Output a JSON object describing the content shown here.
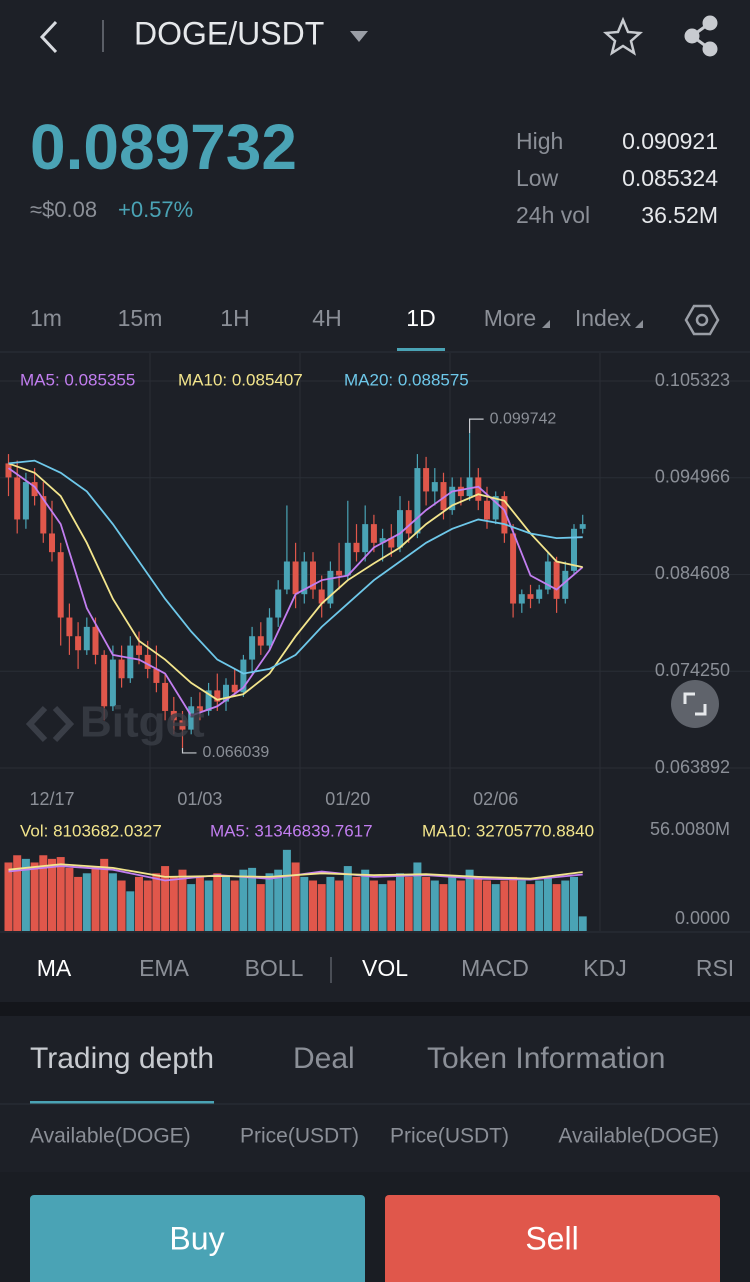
{
  "header": {
    "pair": "DOGE/USDT"
  },
  "ticker": {
    "price": "0.089732",
    "usd": "≈$0.08",
    "change": "+0.57%",
    "stats": [
      {
        "label": "High",
        "value": "0.090921"
      },
      {
        "label": "Low",
        "value": "0.085324"
      },
      {
        "label": "24h vol",
        "value": "36.52M"
      }
    ]
  },
  "timeframes": {
    "items": [
      "1m",
      "15m",
      "1H",
      "4H",
      "1D",
      "More",
      "Index"
    ],
    "active": 4
  },
  "chart_data": {
    "type": "candlestick",
    "legend": [
      "MA5: 0.085355",
      "MA10: 0.085407",
      "MA20: 0.088575"
    ],
    "watermark": "Bitget",
    "up_color": "#4aa3b5",
    "down_color": "#e0574b",
    "ylim": [
      0.063892,
      0.105323
    ],
    "yticks": [
      0.063892,
      {
        "value": 0.07425,
        "label": "0.074250"
      },
      0.084608,
      0.094966,
      0.105323
    ],
    "xticks": [
      {
        "value": 5,
        "label": "12/17"
      },
      {
        "value": 22,
        "label": "01/03"
      },
      {
        "value": 39,
        "label": "01/20"
      },
      {
        "value": 56,
        "label": "02/06"
      }
    ],
    "annotations": [
      {
        "x": 53,
        "value": 0.099742,
        "label": "0.099742"
      },
      {
        "x": 20,
        "value": 0.066039,
        "label": "0.066039"
      }
    ],
    "candles": [
      [
        0.0965,
        0.0975,
        0.093,
        0.095
      ],
      [
        0.095,
        0.0968,
        0.089,
        0.0905
      ],
      [
        0.0905,
        0.0955,
        0.0895,
        0.0945
      ],
      [
        0.0945,
        0.096,
        0.092,
        0.093
      ],
      [
        0.093,
        0.0945,
        0.088,
        0.089
      ],
      [
        0.089,
        0.0925,
        0.086,
        0.087
      ],
      [
        0.087,
        0.088,
        0.077,
        0.08
      ],
      [
        0.08,
        0.0815,
        0.076,
        0.078
      ],
      [
        0.078,
        0.0795,
        0.0745,
        0.0765
      ],
      [
        0.0765,
        0.08,
        0.076,
        0.079
      ],
      [
        0.079,
        0.08,
        0.075,
        0.076
      ],
      [
        0.076,
        0.0765,
        0.069,
        0.0705
      ],
      [
        0.0705,
        0.077,
        0.07,
        0.0755
      ],
      [
        0.0755,
        0.077,
        0.0725,
        0.0735
      ],
      [
        0.0735,
        0.078,
        0.073,
        0.077
      ],
      [
        0.077,
        0.0785,
        0.075,
        0.076
      ],
      [
        0.076,
        0.0775,
        0.0735,
        0.0745
      ],
      [
        0.0745,
        0.077,
        0.072,
        0.073
      ],
      [
        0.073,
        0.074,
        0.069,
        0.07
      ],
      [
        0.07,
        0.0715,
        0.0675,
        0.069
      ],
      [
        0.069,
        0.07,
        0.066039,
        0.068
      ],
      [
        0.068,
        0.0715,
        0.0675,
        0.0705
      ],
      [
        0.0705,
        0.072,
        0.069,
        0.07
      ],
      [
        0.07,
        0.073,
        0.0695,
        0.0722
      ],
      [
        0.0722,
        0.074,
        0.07,
        0.071
      ],
      [
        0.071,
        0.0735,
        0.07,
        0.0728
      ],
      [
        0.0728,
        0.0745,
        0.0715,
        0.072
      ],
      [
        0.072,
        0.076,
        0.0715,
        0.0755
      ],
      [
        0.0755,
        0.079,
        0.074,
        0.078
      ],
      [
        0.078,
        0.0795,
        0.076,
        0.077
      ],
      [
        0.077,
        0.081,
        0.0765,
        0.08
      ],
      [
        0.08,
        0.084,
        0.079,
        0.083
      ],
      [
        0.083,
        0.092,
        0.0825,
        0.086
      ],
      [
        0.086,
        0.088,
        0.081,
        0.0825
      ],
      [
        0.0825,
        0.087,
        0.0815,
        0.086
      ],
      [
        0.086,
        0.087,
        0.082,
        0.083
      ],
      [
        0.083,
        0.0845,
        0.08,
        0.0815
      ],
      [
        0.0815,
        0.086,
        0.081,
        0.085
      ],
      [
        0.085,
        0.088,
        0.083,
        0.0845
      ],
      [
        0.0845,
        0.0925,
        0.084,
        0.088
      ],
      [
        0.088,
        0.09,
        0.086,
        0.087
      ],
      [
        0.087,
        0.092,
        0.086,
        0.09
      ],
      [
        0.09,
        0.091,
        0.087,
        0.088
      ],
      [
        0.088,
        0.0895,
        0.086,
        0.0885
      ],
      [
        0.0885,
        0.09,
        0.0865,
        0.0875
      ],
      [
        0.0875,
        0.093,
        0.087,
        0.0915
      ],
      [
        0.0915,
        0.0925,
        0.088,
        0.089
      ],
      [
        0.089,
        0.0975,
        0.0885,
        0.096
      ],
      [
        0.096,
        0.0972,
        0.092,
        0.0935
      ],
      [
        0.0935,
        0.096,
        0.092,
        0.0945
      ],
      [
        0.0945,
        0.0955,
        0.0905,
        0.0915
      ],
      [
        0.0915,
        0.095,
        0.091,
        0.094
      ],
      [
        0.094,
        0.095,
        0.092,
        0.093
      ],
      [
        0.093,
        0.099742,
        0.0925,
        0.095
      ],
      [
        0.095,
        0.096,
        0.0915,
        0.0925
      ],
      [
        0.0925,
        0.094,
        0.0895,
        0.0905
      ],
      [
        0.0905,
        0.0935,
        0.09,
        0.093
      ],
      [
        0.093,
        0.0935,
        0.088,
        0.089
      ],
      [
        0.089,
        0.09,
        0.08,
        0.0815
      ],
      [
        0.0815,
        0.083,
        0.0805,
        0.0825
      ],
      [
        0.0825,
        0.0835,
        0.081,
        0.082
      ],
      [
        0.082,
        0.0835,
        0.0815,
        0.083
      ],
      [
        0.083,
        0.087,
        0.0825,
        0.086
      ],
      [
        0.086,
        0.0865,
        0.0805,
        0.082
      ],
      [
        0.082,
        0.086,
        0.0815,
        0.085
      ],
      [
        0.085,
        0.09,
        0.0845,
        0.0895
      ],
      [
        0.0895,
        0.091,
        0.089,
        0.09
      ]
    ],
    "ma": [
      {
        "color": "#c27ef0",
        "x": [
          0,
          3,
          6,
          9,
          12,
          15,
          18,
          21,
          24,
          27,
          30,
          33,
          36,
          39,
          42,
          45,
          48,
          51,
          54,
          57,
          60,
          63,
          66
        ],
        "values": [
          0.096,
          0.094,
          0.09,
          0.081,
          0.076,
          0.0755,
          0.074,
          0.0695,
          0.0705,
          0.0725,
          0.0765,
          0.0825,
          0.084,
          0.0845,
          0.0875,
          0.089,
          0.0915,
          0.0935,
          0.094,
          0.0915,
          0.0845,
          0.083,
          0.0854
        ]
      },
      {
        "color": "#f3e58c",
        "x": [
          0,
          3,
          6,
          9,
          12,
          15,
          18,
          21,
          24,
          27,
          30,
          33,
          36,
          39,
          42,
          45,
          48,
          51,
          54,
          57,
          60,
          63,
          66
        ],
        "values": [
          0.0965,
          0.0955,
          0.093,
          0.088,
          0.082,
          0.0775,
          0.0755,
          0.073,
          0.0712,
          0.0718,
          0.074,
          0.078,
          0.0815,
          0.084,
          0.0858,
          0.0875,
          0.09,
          0.092,
          0.0932,
          0.0925,
          0.089,
          0.086,
          0.0854
        ]
      },
      {
        "color": "#6ec8ea",
        "x": [
          0,
          3,
          6,
          9,
          12,
          15,
          18,
          21,
          24,
          27,
          30,
          33,
          36,
          39,
          42,
          45,
          48,
          51,
          54,
          57,
          60,
          63,
          66
        ],
        "values": [
          0.0965,
          0.0968,
          0.0955,
          0.0935,
          0.09,
          0.086,
          0.082,
          0.0785,
          0.0755,
          0.074,
          0.0745,
          0.076,
          0.079,
          0.0815,
          0.084,
          0.086,
          0.088,
          0.0895,
          0.0905,
          0.09,
          0.089,
          0.0885,
          0.0886
        ]
      }
    ],
    "volume": {
      "legend": [
        "Vol: 8103682.0327",
        "MA5: 31346839.7617",
        "MA10: 32705770.8840"
      ],
      "ylim": [
        0,
        56008000
      ],
      "yticks": [
        {
          "value": 0,
          "label": "0.0000"
        },
        {
          "value": 56008000,
          "label": "56.0080M"
        }
      ],
      "values": [
        38000000,
        42000000,
        40000000,
        38000000,
        42000000,
        40000000,
        41000000,
        35000000,
        30000000,
        32000000,
        36000000,
        40000000,
        32000000,
        28000000,
        22000000,
        30000000,
        28000000,
        32000000,
        36000000,
        30000000,
        34000000,
        26000000,
        30000000,
        28000000,
        32000000,
        30000000,
        28000000,
        34000000,
        35000000,
        26000000,
        32000000,
        34000000,
        45000000,
        38000000,
        30000000,
        28000000,
        26000000,
        30000000,
        28000000,
        36000000,
        30000000,
        34000000,
        28000000,
        26000000,
        28000000,
        32000000,
        30000000,
        38000000,
        30000000,
        28000000,
        26000000,
        30000000,
        28000000,
        34000000,
        30000000,
        28000000,
        26000000,
        28000000,
        30000000,
        28000000,
        26000000,
        28000000,
        30000000,
        26000000,
        28000000,
        30000000,
        8103682.0327
      ],
      "ma": [
        {
          "color": "#c27ef0",
          "x": [
            0,
            6,
            12,
            18,
            24,
            30,
            36,
            42,
            48,
            54,
            60,
            66
          ],
          "values": [
            33000000,
            36000000,
            34000000,
            28000000,
            31000000,
            29000000,
            33000000,
            30000000,
            31000000,
            29000000,
            28500000,
            31346839.7617
          ]
        },
        {
          "color": "#f3e58c",
          "x": [
            0,
            6,
            12,
            18,
            24,
            30,
            36,
            42,
            48,
            54,
            60,
            66
          ],
          "values": [
            34000000,
            37000000,
            35000000,
            30000000,
            30500000,
            30000000,
            32000000,
            31000000,
            31500000,
            30000000,
            29000000,
            32705770.884
          ]
        }
      ]
    }
  },
  "indicators": {
    "items": [
      "MA",
      "EMA",
      "BOLL",
      "VOL",
      "MACD",
      "KDJ",
      "RSI"
    ],
    "active": [
      0,
      3
    ]
  },
  "tabs": {
    "items": [
      "Trading depth",
      "Deal",
      "Token Information"
    ],
    "active": 0
  },
  "table": {
    "headers": [
      "Available(DOGE)",
      "Price(USDT)",
      "Price(USDT)",
      "Available(DOGE)"
    ]
  },
  "buttons": {
    "buy": "Buy",
    "sell": "Sell"
  }
}
